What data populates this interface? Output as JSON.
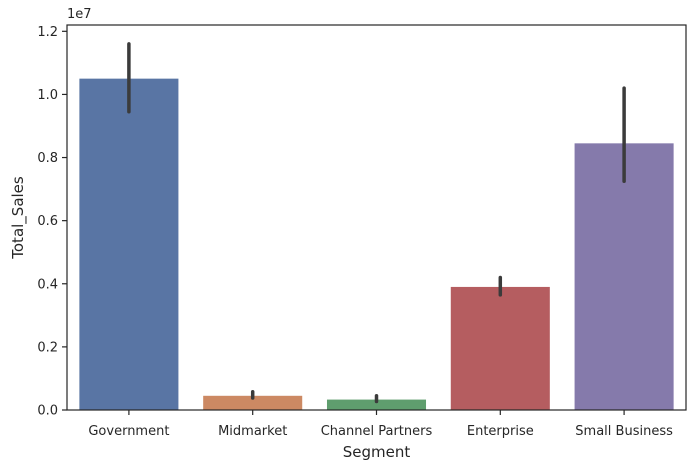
{
  "chart_data": {
    "type": "bar",
    "title": "",
    "xlabel": "Segment",
    "ylabel": "Total_Sales",
    "y_offset_label": "1e7",
    "ylim": [
      0,
      1.22
    ],
    "y_ticks": [
      0.0,
      0.2,
      0.4,
      0.6,
      0.8,
      1.0,
      1.2
    ],
    "y_tick_labels": [
      "0.0",
      "0.2",
      "0.4",
      "0.6",
      "0.8",
      "1.0",
      "1.2"
    ],
    "categories": [
      "Government",
      "Midmarket",
      "Channel Partners",
      "Enterprise",
      "Small Business"
    ],
    "values": [
      1.05,
      0.045,
      0.033,
      0.39,
      0.845
    ],
    "error_low": [
      0.945,
      0.038,
      0.027,
      0.365,
      0.725
    ],
    "error_high": [
      1.16,
      0.058,
      0.045,
      0.42,
      1.02
    ],
    "colors": [
      "#5975a4",
      "#cc8963",
      "#5f9e6e",
      "#b55d60",
      "#857aab"
    ],
    "error_color": "#3b3b3b",
    "grid": false,
    "legend": "none"
  }
}
